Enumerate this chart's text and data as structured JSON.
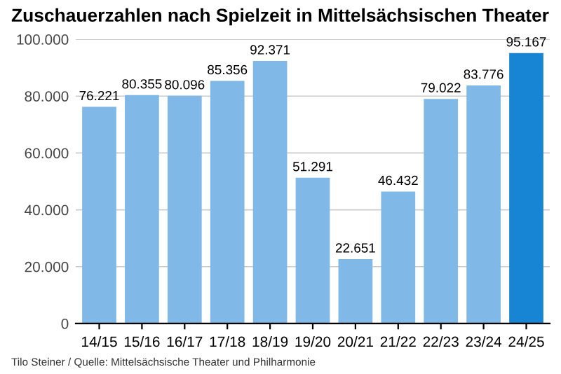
{
  "chart_data": {
    "type": "bar",
    "title": "Zuschauerzahlen nach Spielzeit in Mittelsächsischen Theater",
    "categories": [
      "14/15",
      "15/16",
      "16/17",
      "17/18",
      "18/19",
      "19/20",
      "20/21",
      "21/22",
      "22/23",
      "23/24",
      "24/25"
    ],
    "values": [
      76221,
      80355,
      80096,
      85356,
      92371,
      51291,
      22651,
      46432,
      79022,
      83776,
      95167
    ],
    "value_labels": [
      "76.221",
      "80.355",
      "80.096",
      "85.356",
      "92.371",
      "51.291",
      "22.651",
      "46.432",
      "79.022",
      "83.776",
      "95.167"
    ],
    "colors": [
      "#80b9e8",
      "#80b9e8",
      "#80b9e8",
      "#80b9e8",
      "#80b9e8",
      "#80b9e8",
      "#80b9e8",
      "#80b9e8",
      "#80b9e8",
      "#80b9e8",
      "#1785d3"
    ],
    "ylim": [
      0,
      100000
    ],
    "yticks": [
      {
        "value": 0,
        "label": "0"
      },
      {
        "value": 20000,
        "label": "20.000"
      },
      {
        "value": 40000,
        "label": "40.000"
      },
      {
        "value": 60000,
        "label": "60.000"
      },
      {
        "value": 80000,
        "label": "80.000"
      },
      {
        "value": 100000,
        "label": "100.000"
      }
    ],
    "grid": "y",
    "annotations": [
      "Tilo Steiner / Quelle: Mittelsächsische Theater und Philharmonie"
    ]
  }
}
